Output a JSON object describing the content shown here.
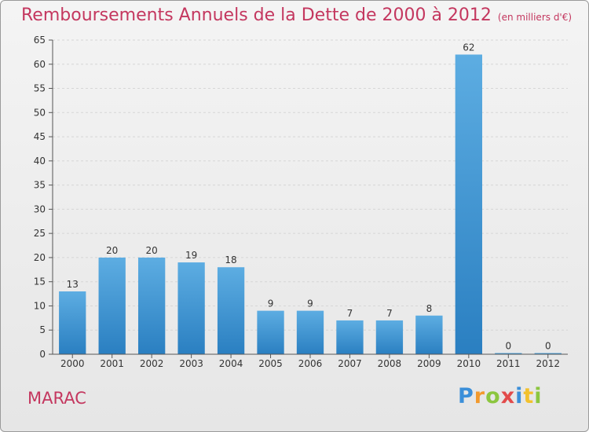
{
  "chart_data": {
    "type": "bar",
    "title": "Remboursements Annuels de la Dette de 2000 à 2012",
    "unit": "(en milliers d'€)",
    "categories": [
      "2000",
      "2001",
      "2002",
      "2003",
      "2004",
      "2005",
      "2006",
      "2007",
      "2008",
      "2009",
      "2010",
      "2011",
      "2012"
    ],
    "values": [
      13,
      20,
      20,
      19,
      18,
      9,
      9,
      7,
      7,
      8,
      62,
      0,
      0
    ],
    "ylim": [
      0,
      65
    ],
    "yticks": [
      0,
      5,
      10,
      15,
      20,
      25,
      30,
      35,
      40,
      45,
      50,
      55,
      60,
      65
    ],
    "grid": true,
    "colors": {
      "bar_light": "#5dade2",
      "bar_dark": "#2a7fc1",
      "title": "#c4375f"
    }
  },
  "commune": "MARAC",
  "logo": {
    "letters": [
      "P",
      "r",
      "o",
      "x",
      "i",
      "t",
      "i"
    ]
  }
}
